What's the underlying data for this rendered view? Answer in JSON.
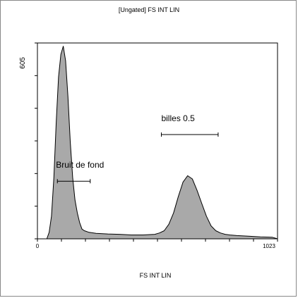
{
  "chart_data": {
    "type": "area",
    "title": "[Ungated] FS INT LIN",
    "xlabel": "FS INT LIN",
    "ylabel": "",
    "xlim": [
      0,
      1023
    ],
    "ylim": [
      0,
      605
    ],
    "x_tick_labels": [
      "0",
      "1023"
    ],
    "y_tick_labels": [
      "605"
    ],
    "fill_color": "#a9a9a9",
    "line_color": "#000000",
    "series": [
      {
        "x": [
          0,
          40,
          50,
          60,
          70,
          80,
          90,
          100,
          110,
          120,
          130,
          140,
          150,
          160,
          170,
          180,
          190,
          200,
          220,
          250,
          300,
          350,
          400,
          450,
          500,
          520,
          540,
          560,
          580,
          600,
          620,
          640,
          660,
          680,
          700,
          720,
          740,
          760,
          780,
          800,
          820,
          850,
          900,
          950,
          1000,
          1023
        ],
        "y": [
          0,
          0,
          20,
          70,
          190,
          360,
          500,
          570,
          595,
          550,
          440,
          300,
          190,
          120,
          80,
          50,
          30,
          25,
          20,
          17,
          15,
          14,
          12,
          12,
          14,
          18,
          25,
          45,
          80,
          130,
          175,
          195,
          185,
          150,
          110,
          70,
          40,
          25,
          18,
          14,
          12,
          10,
          8,
          6,
          5,
          0
        ]
      }
    ],
    "gates": [
      {
        "label": "Bruit de fond",
        "x_start": 85,
        "x_end": 225,
        "y": 178
      },
      {
        "label": "billes 0.5",
        "x_start": 528,
        "x_end": 770,
        "y": 322
      }
    ]
  }
}
